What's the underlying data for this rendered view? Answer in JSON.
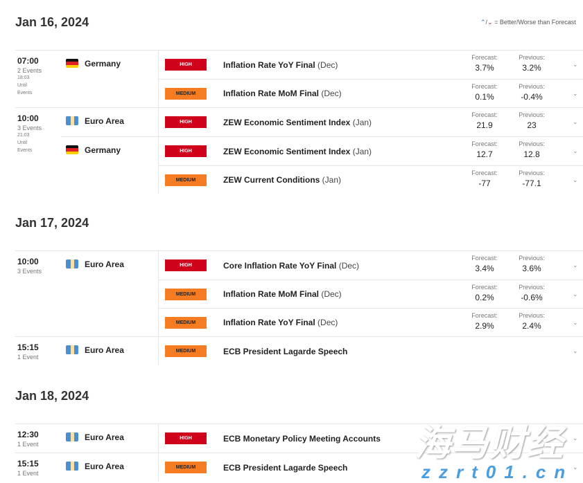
{
  "legend": {
    "up_icon": "arrow-up-icon",
    "down_icon": "arrow-down-icon",
    "text": "= Better/Worse than Forecast"
  },
  "labels": {
    "forecast": "Forecast:",
    "previous": "Previous:"
  },
  "days": [
    {
      "date": "Jan 16, 2024",
      "groups": [
        {
          "time": "07:00",
          "count": "2 Events",
          "until_time": "18:03",
          "until": "Until",
          "events_word": "Events",
          "countries": [
            {
              "name": "Germany",
              "flag": "de",
              "events": [
                {
                  "impact": "HIGH",
                  "title": "Inflation Rate YoY Final",
                  "period": "(Dec)",
                  "forecast": "3.7%",
                  "previous": "3.2%"
                },
                {
                  "impact": "MEDIUM",
                  "title": "Inflation Rate MoM Final",
                  "period": "(Dec)",
                  "forecast": "0.1%",
                  "previous": "-0.4%"
                }
              ]
            }
          ]
        },
        {
          "time": "10:00",
          "count": "3 Events",
          "until_time": "21:03",
          "until": "Until",
          "events_word": "Events",
          "countries": [
            {
              "name": "Euro Area",
              "flag": "eu",
              "events": [
                {
                  "impact": "HIGH",
                  "title": "ZEW Economic Sentiment Index",
                  "period": "(Jan)",
                  "forecast": "21.9",
                  "previous": "23"
                }
              ]
            },
            {
              "name": "Germany",
              "flag": "de",
              "events": [
                {
                  "impact": "HIGH",
                  "title": "ZEW Economic Sentiment Index",
                  "period": "(Jan)",
                  "forecast": "12.7",
                  "previous": "12.8"
                },
                {
                  "impact": "MEDIUM",
                  "title": "ZEW Current Conditions",
                  "period": "(Jan)",
                  "forecast": "-77",
                  "previous": "-77.1"
                }
              ]
            }
          ]
        }
      ]
    },
    {
      "date": "Jan 17, 2024",
      "groups": [
        {
          "time": "10:00",
          "count": "3 Events",
          "countries": [
            {
              "name": "Euro Area",
              "flag": "eu",
              "events": [
                {
                  "impact": "HIGH",
                  "title": "Core Inflation Rate YoY Final",
                  "period": "(Dec)",
                  "forecast": "3.4%",
                  "previous": "3.6%"
                },
                {
                  "impact": "MEDIUM",
                  "title": "Inflation Rate MoM Final",
                  "period": "(Dec)",
                  "forecast": "0.2%",
                  "previous": "-0.6%"
                },
                {
                  "impact": "MEDIUM",
                  "title": "Inflation Rate YoY Final",
                  "period": "(Dec)",
                  "forecast": "2.9%",
                  "previous": "2.4%"
                }
              ]
            }
          ]
        },
        {
          "time": "15:15",
          "count": "1 Event",
          "countries": [
            {
              "name": "Euro Area",
              "flag": "eu",
              "events": [
                {
                  "impact": "MEDIUM",
                  "title": "ECB President Lagarde Speech",
                  "period": ""
                }
              ]
            }
          ]
        }
      ]
    },
    {
      "date": "Jan 18, 2024",
      "groups": [
        {
          "time": "12:30",
          "count": "1 Event",
          "countries": [
            {
              "name": "Euro Area",
              "flag": "eu",
              "events": [
                {
                  "impact": "HIGH",
                  "title": "ECB Monetary Policy Meeting Accounts",
                  "period": ""
                }
              ]
            }
          ]
        },
        {
          "time": "15:15",
          "count": "1 Event",
          "countries": [
            {
              "name": "Euro Area",
              "flag": "eu",
              "events": [
                {
                  "impact": "MEDIUM",
                  "title": "ECB President Lagarde Speech",
                  "period": ""
                }
              ]
            }
          ]
        }
      ]
    }
  ],
  "watermark": {
    "cn": "海马财经",
    "url": "zzrt01.cn"
  }
}
